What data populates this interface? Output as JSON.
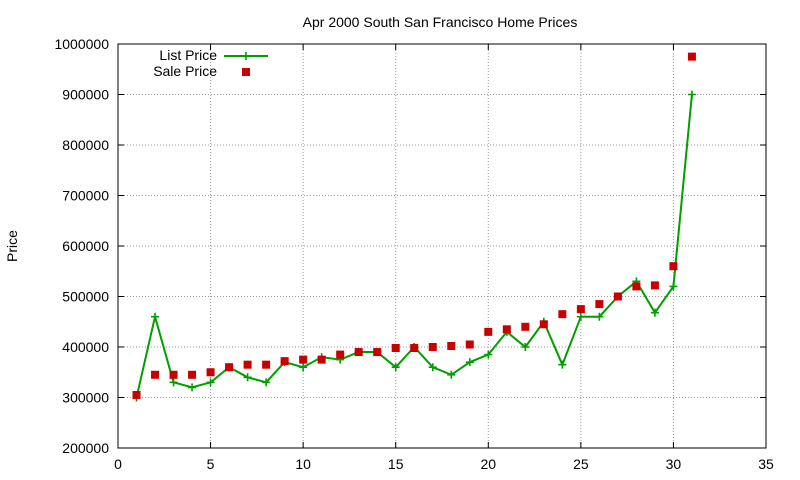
{
  "chart_data": {
    "type": "line",
    "title": "Apr 2000 South San Francisco Home Prices",
    "xlabel": "",
    "ylabel": "Price",
    "xlim": [
      0,
      35
    ],
    "ylim": [
      200000,
      1000000
    ],
    "x_ticks": [
      0,
      5,
      10,
      15,
      20,
      25,
      30,
      35
    ],
    "y_ticks": [
      200000,
      300000,
      400000,
      500000,
      600000,
      700000,
      800000,
      900000,
      1000000
    ],
    "grid": true,
    "legend_position": "top-left",
    "series": [
      {
        "name": "List Price",
        "style": "line-with-plus-markers",
        "color": "#009e00",
        "x": [
          1,
          2,
          3,
          4,
          5,
          6,
          7,
          8,
          9,
          10,
          11,
          12,
          13,
          14,
          15,
          16,
          17,
          18,
          19,
          20,
          21,
          22,
          23,
          24,
          25,
          26,
          27,
          28,
          29,
          30,
          31
        ],
        "values": [
          300000,
          460000,
          330000,
          320000,
          330000,
          360000,
          340000,
          330000,
          370000,
          360000,
          380000,
          375000,
          390000,
          390000,
          360000,
          400000,
          360000,
          345000,
          370000,
          385000,
          430000,
          400000,
          450000,
          365000,
          460000,
          460000,
          500000,
          530000,
          468000,
          520000,
          900000
        ]
      },
      {
        "name": "Sale Price",
        "style": "square-markers",
        "color": "#c80000",
        "x": [
          1,
          2,
          3,
          4,
          5,
          6,
          7,
          8,
          9,
          10,
          11,
          12,
          13,
          14,
          15,
          16,
          17,
          18,
          19,
          20,
          21,
          22,
          23,
          24,
          25,
          26,
          27,
          28,
          29,
          30,
          31
        ],
        "values": [
          305000,
          345000,
          345000,
          345000,
          350000,
          360000,
          365000,
          365000,
          372000,
          375000,
          375000,
          385000,
          390000,
          390000,
          398000,
          398000,
          400000,
          402000,
          405000,
          430000,
          435000,
          440000,
          445000,
          465000,
          475000,
          485000,
          500000,
          520000,
          522000,
          560000,
          975000
        ]
      }
    ]
  }
}
